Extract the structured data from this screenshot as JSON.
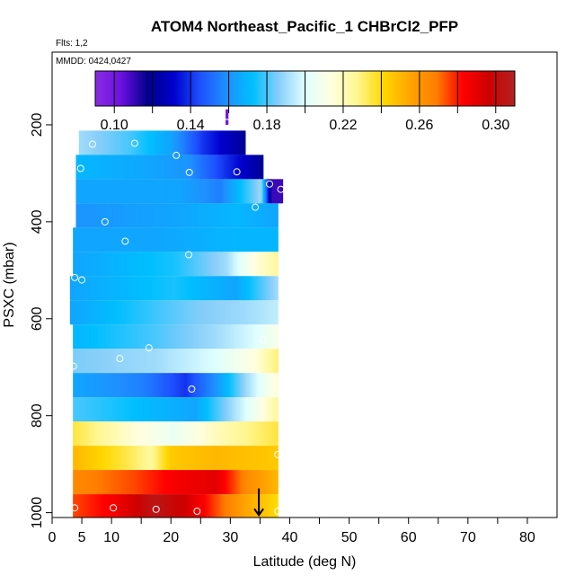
{
  "chart_data": {
    "type": "heatmap",
    "title": "ATOM4 Northeast_Pacific_1 CHBrCl2_PFP",
    "flights_label": "Flts: 1,2",
    "dates_label": "MMDD: 0424,0427",
    "xlabel": "Latitude (deg N)",
    "ylabel": "PSXC (mbar)",
    "xlim": [
      0,
      85
    ],
    "ylim": [
      1010,
      50
    ],
    "x_ticks": [
      0,
      5,
      10,
      20,
      30,
      40,
      50,
      60,
      70,
      80
    ],
    "x_minor_ticks": [
      15,
      25,
      35,
      45,
      55,
      65,
      75
    ],
    "y_ticks": [
      200,
      400,
      600,
      800,
      1000
    ],
    "colorbar": {
      "min": 0.09,
      "max": 0.31,
      "tick_values": [
        0.1,
        0.14,
        0.18,
        0.22,
        0.26,
        0.3
      ],
      "tick_labels": [
        "0.10",
        "0.14",
        "0.18",
        "0.22",
        "0.26",
        "0.30"
      ],
      "minor_ticks": [
        0.12,
        0.16,
        0.2,
        0.24,
        0.28
      ],
      "colors": [
        "#8a2be2",
        "#6a10e0",
        "#00008b",
        "#0000cd",
        "#1e50ff",
        "#1e90ff",
        "#00bfff",
        "#87cefa",
        "#e0ffff",
        "#ffffe0",
        "#fff68f",
        "#ffd700",
        "#ffa500",
        "#ff7f00",
        "#ff0000",
        "#cd0000",
        "#b22222"
      ]
    },
    "bands": [
      {
        "p_top": 168,
        "p_bot": 200,
        "lat_start": 29.2,
        "lat_end": 29.6,
        "profile": [
          [
            0,
            0.1
          ],
          [
            1,
            0.1
          ]
        ]
      },
      {
        "p_top": 212,
        "p_bot": 262,
        "lat_start": 4.5,
        "lat_end": 32.5,
        "profile": [
          [
            0,
            0.19
          ],
          [
            0.3,
            0.18
          ],
          [
            0.55,
            0.165
          ],
          [
            0.75,
            0.14
          ],
          [
            1,
            0.12
          ]
        ]
      },
      {
        "p_top": 262,
        "p_bot": 312,
        "lat_start": 4.0,
        "lat_end": 35.5,
        "profile": [
          [
            0,
            0.17
          ],
          [
            0.4,
            0.165
          ],
          [
            0.6,
            0.16
          ],
          [
            0.8,
            0.14
          ],
          [
            1,
            0.12
          ]
        ]
      },
      {
        "p_top": 312,
        "p_bot": 362,
        "lat_start": 4.0,
        "lat_end": 38.8,
        "profile": [
          [
            0,
            0.165
          ],
          [
            0.5,
            0.165
          ],
          [
            0.7,
            0.155
          ],
          [
            0.9,
            0.19
          ],
          [
            0.95,
            0.11
          ],
          [
            1,
            0.11
          ]
        ]
      },
      {
        "p_top": 362,
        "p_bot": 412,
        "lat_start": 4.0,
        "lat_end": 38.0,
        "profile": [
          [
            0,
            0.16
          ],
          [
            0.5,
            0.165
          ],
          [
            0.8,
            0.17
          ],
          [
            1,
            0.165
          ]
        ]
      },
      {
        "p_top": 412,
        "p_bot": 462,
        "lat_start": 3.5,
        "lat_end": 38.0,
        "profile": [
          [
            0,
            0.165
          ],
          [
            0.4,
            0.165
          ],
          [
            0.8,
            0.17
          ],
          [
            1,
            0.17
          ]
        ]
      },
      {
        "p_top": 462,
        "p_bot": 512,
        "lat_start": 3.5,
        "lat_end": 38.0,
        "profile": [
          [
            0,
            0.165
          ],
          [
            0.5,
            0.175
          ],
          [
            0.75,
            0.19
          ],
          [
            0.9,
            0.215
          ],
          [
            1,
            0.225
          ]
        ]
      },
      {
        "p_top": 512,
        "p_bot": 562,
        "lat_start": 3.0,
        "lat_end": 38.0,
        "profile": [
          [
            0,
            0.165
          ],
          [
            0.5,
            0.175
          ],
          [
            0.8,
            0.165
          ],
          [
            1,
            0.19
          ]
        ]
      },
      {
        "p_top": 562,
        "p_bot": 612,
        "lat_start": 3.0,
        "lat_end": 38.0,
        "profile": [
          [
            0,
            0.165
          ],
          [
            0.3,
            0.175
          ],
          [
            0.6,
            0.185
          ],
          [
            0.85,
            0.19
          ],
          [
            1,
            0.195
          ]
        ]
      },
      {
        "p_top": 612,
        "p_bot": 662,
        "lat_start": 3.5,
        "lat_end": 38.0,
        "profile": [
          [
            0,
            0.17
          ],
          [
            0.4,
            0.18
          ],
          [
            0.7,
            0.19
          ],
          [
            0.9,
            0.2
          ],
          [
            1,
            0.21
          ]
        ]
      },
      {
        "p_top": 662,
        "p_bot": 712,
        "lat_start": 3.5,
        "lat_end": 38.0,
        "profile": [
          [
            0,
            0.185
          ],
          [
            0.4,
            0.19
          ],
          [
            0.7,
            0.2
          ],
          [
            0.9,
            0.215
          ],
          [
            1,
            0.23
          ]
        ]
      },
      {
        "p_top": 712,
        "p_bot": 762,
        "lat_start": 3.5,
        "lat_end": 38.0,
        "profile": [
          [
            0,
            0.165
          ],
          [
            0.35,
            0.155
          ],
          [
            0.55,
            0.14
          ],
          [
            0.7,
            0.16
          ],
          [
            0.85,
            0.19
          ],
          [
            1,
            0.215
          ]
        ]
      },
      {
        "p_top": 762,
        "p_bot": 812,
        "lat_start": 3.5,
        "lat_end": 38.0,
        "profile": [
          [
            0,
            0.18
          ],
          [
            0.4,
            0.17
          ],
          [
            0.6,
            0.165
          ],
          [
            0.85,
            0.2
          ],
          [
            1,
            0.225
          ]
        ]
      },
      {
        "p_top": 812,
        "p_bot": 862,
        "lat_start": 3.5,
        "lat_end": 38.0,
        "profile": [
          [
            0,
            0.235
          ],
          [
            0.3,
            0.215
          ],
          [
            0.5,
            0.205
          ],
          [
            0.7,
            0.22
          ],
          [
            0.9,
            0.23
          ],
          [
            1,
            0.235
          ]
        ]
      },
      {
        "p_top": 862,
        "p_bot": 912,
        "lat_start": 3.5,
        "lat_end": 38.0,
        "profile": [
          [
            0,
            0.25
          ],
          [
            0.25,
            0.235
          ],
          [
            0.38,
            0.225
          ],
          [
            0.48,
            0.245
          ],
          [
            0.7,
            0.25
          ],
          [
            1,
            0.245
          ]
        ]
      },
      {
        "p_top": 912,
        "p_bot": 962,
        "lat_start": 3.5,
        "lat_end": 38.0,
        "profile": [
          [
            0,
            0.265
          ],
          [
            0.3,
            0.275
          ],
          [
            0.5,
            0.285
          ],
          [
            0.7,
            0.29
          ],
          [
            0.85,
            0.265
          ],
          [
            1,
            0.25
          ]
        ]
      },
      {
        "p_top": 962,
        "p_bot": 1010,
        "lat_start": 3.5,
        "lat_end": 38.0,
        "profile": [
          [
            0,
            0.275
          ],
          [
            0.2,
            0.285
          ],
          [
            0.4,
            0.305
          ],
          [
            0.55,
            0.295
          ],
          [
            0.7,
            0.275
          ],
          [
            0.85,
            0.255
          ],
          [
            1,
            0.24
          ]
        ]
      }
    ],
    "samples": [
      {
        "lat": 29.4,
        "p": 195
      },
      {
        "lat": 6.8,
        "p": 240
      },
      {
        "lat": 13.9,
        "p": 238
      },
      {
        "lat": 20.9,
        "p": 263
      },
      {
        "lat": 4.8,
        "p": 290
      },
      {
        "lat": 23.1,
        "p": 298
      },
      {
        "lat": 31.1,
        "p": 297
      },
      {
        "lat": 36.6,
        "p": 322
      },
      {
        "lat": 38.5,
        "p": 333
      },
      {
        "lat": 34.2,
        "p": 370
      },
      {
        "lat": 8.9,
        "p": 400
      },
      {
        "lat": 12.3,
        "p": 440
      },
      {
        "lat": 23.0,
        "p": 468
      },
      {
        "lat": 3.8,
        "p": 515
      },
      {
        "lat": 5.0,
        "p": 520
      },
      {
        "lat": 35.5,
        "p": 643
      },
      {
        "lat": 16.3,
        "p": 660
      },
      {
        "lat": 11.4,
        "p": 682
      },
      {
        "lat": 3.6,
        "p": 698
      },
      {
        "lat": 23.5,
        "p": 745
      },
      {
        "lat": 38.0,
        "p": 880
      },
      {
        "lat": 3.8,
        "p": 990
      },
      {
        "lat": 10.3,
        "p": 990
      },
      {
        "lat": 17.5,
        "p": 993
      },
      {
        "lat": 24.4,
        "p": 997
      },
      {
        "lat": 38.0,
        "p": 997
      }
    ],
    "marker_arrow": {
      "lat": 34.8,
      "p_from": 950,
      "p_to": 1005
    }
  }
}
